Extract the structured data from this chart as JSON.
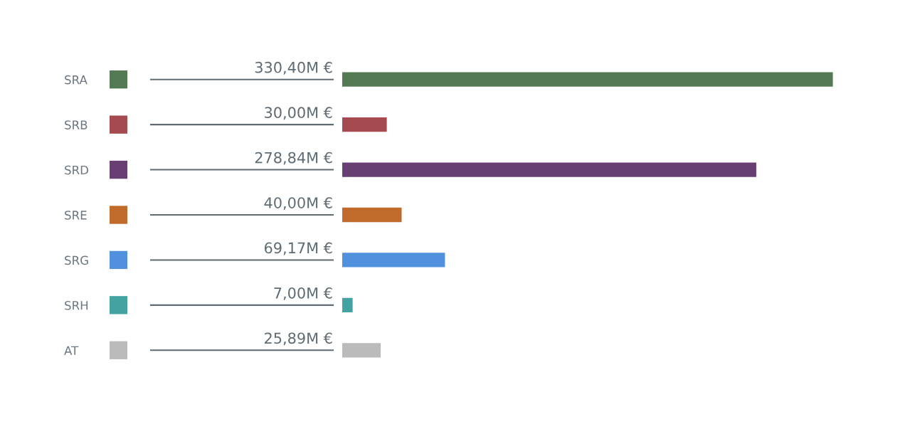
{
  "chart_data": {
    "type": "bar",
    "orientation": "horizontal",
    "categories": [
      "SRA",
      "SRB",
      "SRD",
      "SRE",
      "SRG",
      "SRH",
      "AT"
    ],
    "values": [
      330.4,
      30.0,
      278.84,
      40.0,
      69.17,
      7.0,
      25.89
    ],
    "value_labels": [
      "330,40M €",
      "30,00M €",
      "278,84M €",
      "40,00M €",
      "69,17M €",
      "7,00M €",
      "25,89M €"
    ],
    "colors": [
      "#537a52",
      "#a54b4f",
      "#673f73",
      "#c06a2c",
      "#5090dc",
      "#42a3a0",
      "#bbbbbb"
    ],
    "data_labels": false
  }
}
